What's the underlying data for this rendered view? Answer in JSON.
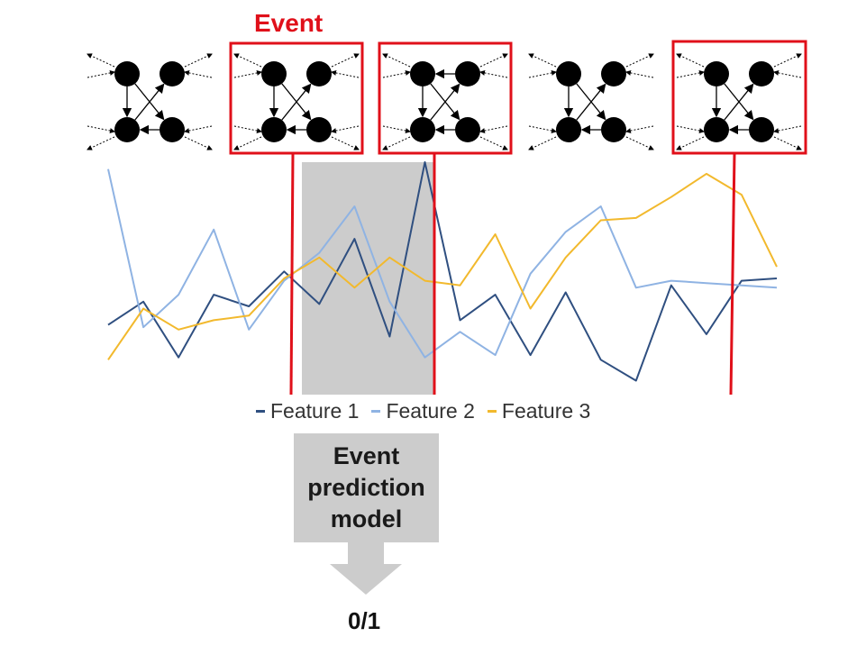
{
  "event_label": "Event",
  "legend": [
    {
      "name": "Feature 1",
      "color": "#2f4f80"
    },
    {
      "name": "Feature 2",
      "color": "#8fb3e3"
    },
    {
      "name": "Feature 3",
      "color": "#f2b92d"
    }
  ],
  "model_label_lines": [
    "Event",
    "prediction",
    "model"
  ],
  "output_label": "0/1",
  "colors": {
    "event_red": "#e0101a",
    "window_gray": "#cccccc"
  },
  "graph_snapshots": [
    {
      "event": false
    },
    {
      "event": true
    },
    {
      "event": true
    },
    {
      "event": false
    },
    {
      "event": true
    }
  ],
  "chart_data": {
    "type": "line",
    "x": [
      0,
      1,
      2,
      3,
      4,
      5,
      6,
      7,
      8,
      9,
      10,
      11,
      12,
      13,
      14,
      15,
      16,
      17,
      18,
      19
    ],
    "series": [
      {
        "name": "Feature 1",
        "values": [
          0.3,
          0.4,
          0.16,
          0.43,
          0.38,
          0.53,
          0.39,
          0.67,
          0.25,
          1.0,
          0.32,
          0.43,
          0.17,
          0.44,
          0.15,
          0.06,
          0.47,
          0.26,
          0.49,
          0.5
        ]
      },
      {
        "name": "Feature 2",
        "values": [
          0.97,
          0.29,
          0.43,
          0.71,
          0.28,
          0.49,
          0.61,
          0.81,
          0.4,
          0.16,
          0.27,
          0.17,
          0.52,
          0.7,
          0.81,
          0.46,
          0.49,
          0.48,
          0.47,
          0.46
        ]
      },
      {
        "name": "Feature 3",
        "values": [
          0.15,
          0.37,
          0.28,
          0.32,
          0.34,
          0.5,
          0.59,
          0.46,
          0.59,
          0.49,
          0.47,
          0.69,
          0.37,
          0.59,
          0.75,
          0.76,
          0.85,
          0.95,
          0.86,
          0.55
        ]
      }
    ],
    "event_markers": [
      5,
      9,
      17.5
    ],
    "prediction_window": [
      5.5,
      9.5
    ]
  }
}
